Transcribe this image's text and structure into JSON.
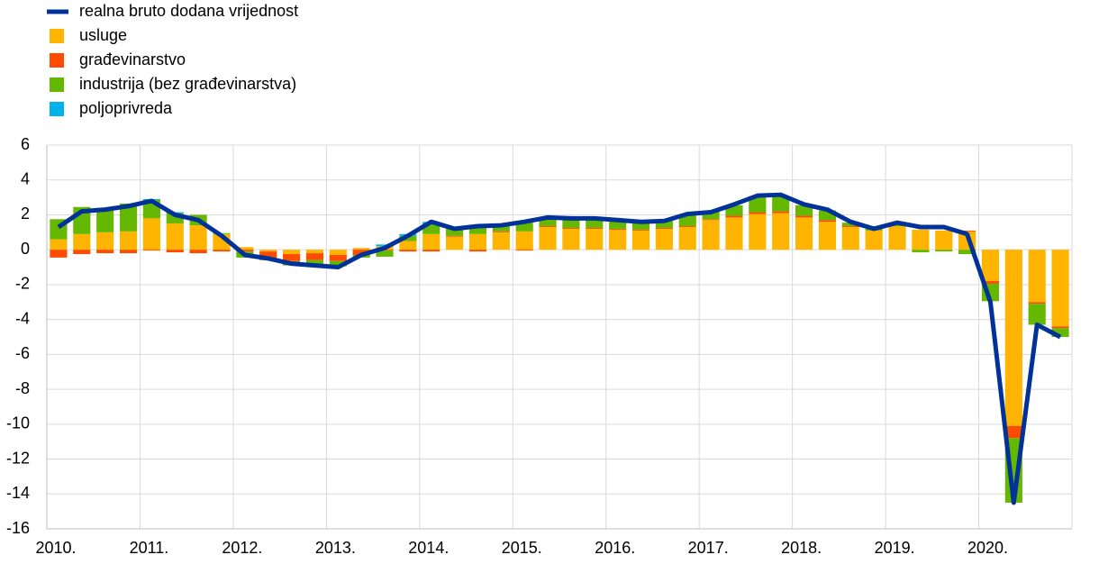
{
  "chart_data": {
    "type": "bar",
    "categories": [
      "2010.",
      null,
      null,
      null,
      "2011.",
      null,
      null,
      null,
      "2012.",
      null,
      null,
      null,
      "2013.",
      null,
      null,
      null,
      "2014.",
      null,
      null,
      null,
      "2015.",
      null,
      null,
      null,
      "2016.",
      null,
      null,
      null,
      "2017.",
      null,
      null,
      null,
      "2018.",
      null,
      null,
      null,
      "2019.",
      null,
      null,
      null,
      "2020.",
      null,
      null,
      null
    ],
    "series": [
      {
        "name": "realna bruto dodana vrijednost",
        "type": "line",
        "color": "#003299",
        "values": [
          1.3,
          2.2,
          2.3,
          2.5,
          2.8,
          2.0,
          1.7,
          0.8,
          -0.3,
          -0.5,
          -0.8,
          -0.9,
          -1.0,
          -0.3,
          0.1,
          0.8,
          1.6,
          1.2,
          1.35,
          1.4,
          1.6,
          1.85,
          1.8,
          1.8,
          1.7,
          1.6,
          1.65,
          2.05,
          2.15,
          2.6,
          3.1,
          3.15,
          2.6,
          2.3,
          1.6,
          1.2,
          1.55,
          1.3,
          1.3,
          0.9,
          -3.0,
          -14.5,
          -4.3,
          -5.0
        ]
      },
      {
        "name": "usluge",
        "type": "bar",
        "color": "#ffb400",
        "values": [
          0.6,
          0.9,
          1.0,
          1.05,
          1.8,
          1.5,
          1.4,
          0.9,
          0.15,
          -0.1,
          -0.25,
          -0.2,
          -0.3,
          0.1,
          0.2,
          0.5,
          0.9,
          0.75,
          0.9,
          1.0,
          1.05,
          1.3,
          1.2,
          1.2,
          1.15,
          1.1,
          1.2,
          1.3,
          1.7,
          1.85,
          2.05,
          2.1,
          1.85,
          1.6,
          1.3,
          1.1,
          1.35,
          1.15,
          1.1,
          1.05,
          -1.8,
          -10.1,
          -3.0,
          -4.4
        ]
      },
      {
        "name": "građevinarstvo",
        "type": "bar",
        "color": "#ff4b00",
        "values": [
          -0.45,
          -0.25,
          -0.2,
          -0.2,
          -0.05,
          -0.15,
          -0.2,
          -0.1,
          -0.1,
          -0.4,
          -0.4,
          -0.4,
          -0.35,
          -0.3,
          -0.05,
          -0.1,
          -0.1,
          0.05,
          -0.1,
          0.05,
          -0.05,
          0.05,
          0.05,
          0.05,
          0.05,
          0.05,
          0.05,
          0.05,
          0.05,
          0.1,
          0.1,
          0.1,
          0.1,
          0.1,
          0.05,
          0,
          0,
          0,
          0,
          0.05,
          -0.15,
          -0.7,
          -0.1,
          -0.1
        ]
      },
      {
        "name": "industrija (bez građevinarstva)",
        "type": "bar",
        "color": "#65b800",
        "values": [
          1.15,
          1.55,
          1.4,
          1.6,
          1.05,
          0.6,
          0.6,
          0.05,
          -0.35,
          -0.1,
          -0.25,
          -0.3,
          -0.3,
          -0.15,
          -0.35,
          0.3,
          0.55,
          0.4,
          0.4,
          0.35,
          0.5,
          0.45,
          0.5,
          0.45,
          0.45,
          0.4,
          0.4,
          0.65,
          0.45,
          0.6,
          0.85,
          0.85,
          0.6,
          0.55,
          0.2,
          0.1,
          0.1,
          -0.15,
          -0.1,
          -0.25,
          -1.0,
          -3.7,
          -1.2,
          -0.5
        ]
      },
      {
        "name": "poljoprivreda",
        "type": "bar",
        "color": "#00b1ea",
        "values": [
          0,
          0,
          0,
          0,
          0.05,
          0.05,
          0,
          0,
          0,
          0,
          0,
          0,
          0,
          0,
          0.1,
          0.1,
          0.15,
          0,
          0,
          0,
          0,
          0,
          0,
          0,
          0,
          0,
          0,
          0,
          0,
          0,
          0,
          0,
          0,
          0,
          0,
          0,
          0,
          0,
          0,
          0,
          0,
          0,
          0,
          0
        ]
      }
    ],
    "ylim": [
      -16,
      6
    ],
    "yticks": [
      -16,
      -14,
      -12,
      -10,
      -8,
      -6,
      -4,
      -2,
      0,
      2,
      4,
      6
    ],
    "grid": true
  }
}
